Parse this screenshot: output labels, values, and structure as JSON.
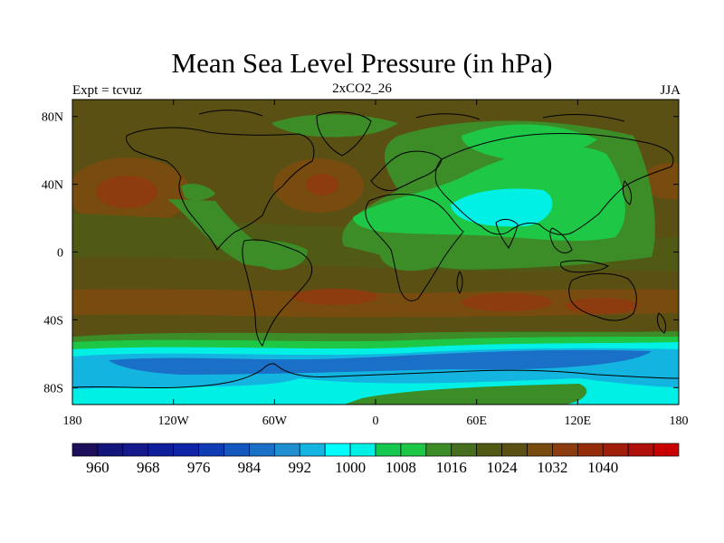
{
  "title": "Mean Sea Level Pressure (in hPa)",
  "subtitle_left": "Expt = tcvuz",
  "subtitle_center": "2xCO2_26",
  "subtitle_right": "JJA",
  "y_ticks": [
    "80N",
    "40N",
    "0",
    "40S",
    "80S"
  ],
  "x_ticks": [
    "180",
    "120W",
    "60W",
    "0",
    "60E",
    "120E",
    "180"
  ],
  "colorbar": {
    "colors": [
      "#1e0f5a",
      "#14157a",
      "#141a8c",
      "#0f1e9b",
      "#0f24a8",
      "#0f3cb4",
      "#1457be",
      "#1970c6",
      "#1f8fd2",
      "#14b4e0",
      "#00ffff",
      "#00f0e6",
      "#14c850",
      "#1ec846",
      "#3c8c28",
      "#466e1e",
      "#505a14",
      "#5a5014",
      "#784b0f",
      "#8c3c0f",
      "#962d0a",
      "#a01e0a",
      "#b0100a",
      "#c80000"
    ],
    "labels": [
      "960",
      "968",
      "976",
      "984",
      "992",
      "1000",
      "1008",
      "1016",
      "1024",
      "1032",
      "1040"
    ]
  },
  "map_colors": {
    "background": "#5a5014",
    "olive_light": "#505a14",
    "green_mid": "#3c8c28",
    "green_bright": "#1ec846",
    "cyan": "#00f0e6",
    "blue_light": "#14b4e0",
    "blue_mid": "#1970c6",
    "brown": "#784b0f",
    "red_brown": "#8c3c0f"
  }
}
